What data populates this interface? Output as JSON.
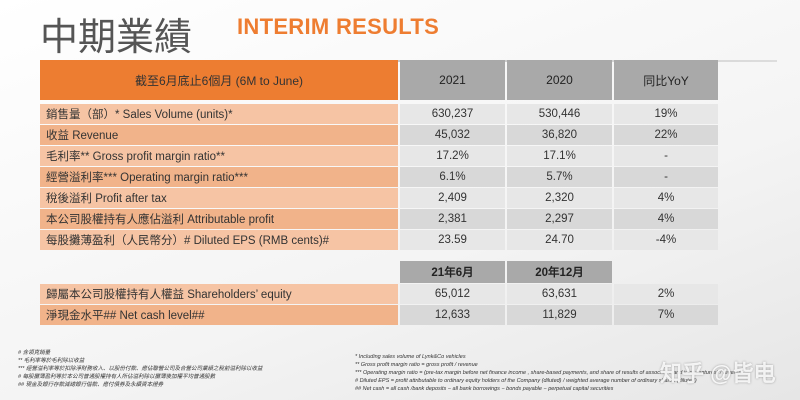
{
  "header": {
    "title_cn": "中期業績",
    "title_en": "INTERIM RESULTS"
  },
  "table": {
    "columns": [
      "截至6月底止6個月 (6M to June)",
      "2021",
      "2020",
      "同比YoY"
    ],
    "rows": [
      {
        "label": "銷售量（部）*    Sales Volume (units)*",
        "v2021": "630,237",
        "v2020": "530,446",
        "yoy": "19%"
      },
      {
        "label": "收益 Revenue",
        "v2021": "45,032",
        "v2020": "36,820",
        "yoy": "22%"
      },
      {
        "label": "毛利率** Gross profit margin ratio**",
        "v2021": "17.2%",
        "v2020": "17.1%",
        "yoy": "-"
      },
      {
        "label": "經營溢利率*** Operating margin ratio***",
        "v2021": "6.1%",
        "v2020": "5.7%",
        "yoy": "-"
      },
      {
        "label": "稅後溢利  Profit after tax",
        "v2021": "2,409",
        "v2020": "2,320",
        "yoy": "4%"
      },
      {
        "label": "本公司股權持有人應佔溢利 Attributable profit",
        "v2021": "2,381",
        "v2020": "2,297",
        "yoy": "4%"
      },
      {
        "label": "每股攤薄盈利（人民幣分）# Diluted EPS (RMB cents)#",
        "v2021": "23.59",
        "v2020": "24.70",
        "yoy": "-4%"
      }
    ],
    "columns2": [
      "21年6月",
      "20年12月"
    ],
    "rows2": [
      {
        "label": "歸屬本公司股權持有人權益 Shareholders’ equity",
        "v1": "65,012",
        "v2": "63,631",
        "yoy": "2%"
      },
      {
        "label": "淨現金水平## Net cash level##",
        "v1": "12,633",
        "v2": "11,829",
        "yoy": "7%"
      }
    ]
  },
  "footnotes_cn": [
    "#      含領克銷量",
    "**    毛利率等於毛利除以收益",
    "***  經營溢利率等於扣除淨財務收入、以股份付款、應佔聯營公司及合營公司業績之稅前溢利除以收益",
    "#    每股攤薄盈利等於本公司普通股權持有人所佔溢利除以攤薄後加權平均普通股數",
    "##  現金及銀行存款減總銀行借款、應付債券及永續資本證券"
  ],
  "footnotes_en": [
    "*     Including sales volume of Lynk&Co vehicles",
    "**  Gross profit margin ratio = gross profit / revenue",
    "*** Operating margin ratio = (pre-tax margin before net finance income , share-based payments, and share of results of associates and joint ventures) / revenue",
    "# Diluted EPS = profit attributable to ordinary equity holders of the Company (diluted) / weighted average number of ordinary shares (diluted)",
    "## Net cash = all cash /bank deposits − all bank borrowings − bonds payable − perpetual capital securities"
  ],
  "watermark": "知乎 @皆电"
}
